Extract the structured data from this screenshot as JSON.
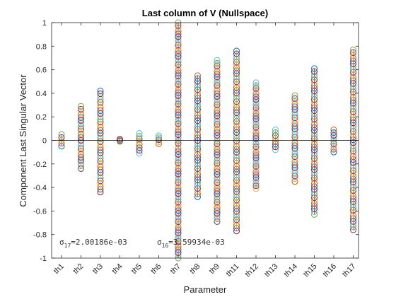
{
  "chart_data": {
    "type": "scatter",
    "title": "Last column of V (Nullspace)",
    "xlabel": "Parameter",
    "ylabel": "Component Last Singular Vector",
    "categories": [
      "th1",
      "th2",
      "th3",
      "th4",
      "th5",
      "th6",
      "th7",
      "th8",
      "th9",
      "th11",
      "th12",
      "th13",
      "th14",
      "th15",
      "th16",
      "th17"
    ],
    "ylim": [
      -1,
      1
    ],
    "yticks": [
      -1,
      -0.8,
      -0.6,
      -0.4,
      -0.2,
      0,
      0.2,
      0.4,
      0.6,
      0.8,
      1
    ],
    "ytick_labels": [
      "-1",
      "-0.8",
      "-0.6",
      "-0.4",
      "-0.2",
      "0",
      "0.2",
      "0.4",
      "0.6",
      "0.8",
      "1"
    ],
    "grid": false,
    "zero_line": true,
    "marker": "open-circle",
    "colors": [
      "#0072BD",
      "#D95319",
      "#EDB120",
      "#7E2F8E",
      "#77AC30",
      "#4DBEEE",
      "#A2142F"
    ],
    "annotations": [
      {
        "sigma": "σ",
        "sub": "17",
        "value": "=2.00186e-03"
      },
      {
        "sigma": "σ",
        "sub": "16",
        "value": "=3.59934e-03"
      }
    ],
    "series_ranges": [
      {
        "category": "th1",
        "min": -0.05,
        "max": 0.05
      },
      {
        "category": "th2",
        "min": -0.24,
        "max": 0.29
      },
      {
        "category": "th3",
        "min": -0.44,
        "max": 0.42
      },
      {
        "category": "th4",
        "min": -0.01,
        "max": 0.01
      },
      {
        "category": "th5",
        "min": -0.11,
        "max": 0.06
      },
      {
        "category": "th6",
        "min": -0.03,
        "max": 0.04
      },
      {
        "category": "th7",
        "min": -1.0,
        "max": 1.0
      },
      {
        "category": "th8",
        "min": -0.48,
        "max": 0.55
      },
      {
        "category": "th9",
        "min": -0.69,
        "max": 0.68
      },
      {
        "category": "th11",
        "min": -0.77,
        "max": 0.76
      },
      {
        "category": "th12",
        "min": -0.41,
        "max": 0.49
      },
      {
        "category": "th13",
        "min": -0.08,
        "max": 0.09
      },
      {
        "category": "th14",
        "min": -0.35,
        "max": 0.38
      },
      {
        "category": "th15",
        "min": -0.63,
        "max": 0.61
      },
      {
        "category": "th16",
        "min": -0.1,
        "max": 0.09
      },
      {
        "category": "th17",
        "min": -0.76,
        "max": 0.77
      }
    ]
  }
}
